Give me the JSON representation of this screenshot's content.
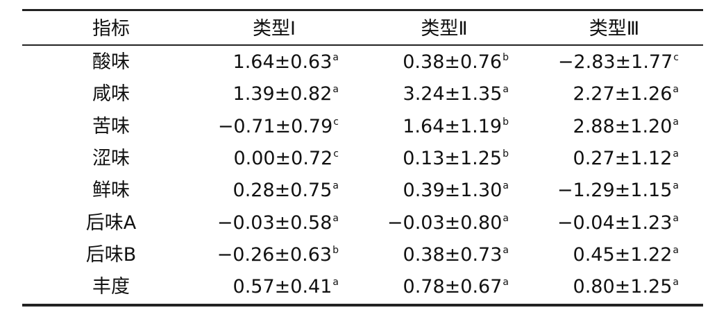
{
  "table": {
    "header": [
      "指标",
      "类型Ⅰ",
      "类型Ⅱ",
      "类型Ⅲ"
    ],
    "rows": [
      [
        "酸味",
        {
          "text": "1.64±0.63",
          "sup": "a"
        },
        {
          "text": "0.38±0.76",
          "sup": "b"
        },
        {
          "text": "−2.83±1.77",
          "sup": "c"
        }
      ],
      [
        "咸味",
        {
          "text": "1.39±0.82",
          "sup": "a"
        },
        {
          "text": "3.24±1.35",
          "sup": "a"
        },
        {
          "text": "2.27±1.26",
          "sup": "a"
        }
      ],
      [
        "苦味",
        {
          "text": "−0.71±0.79",
          "sup": "c"
        },
        {
          "text": "1.64±1.19",
          "sup": "b"
        },
        {
          "text": "2.88±1.20",
          "sup": "a"
        }
      ],
      [
        "涩味",
        {
          "text": "0.00±0.72",
          "sup": "c"
        },
        {
          "text": "0.13±1.25",
          "sup": "b"
        },
        {
          "text": "0.27±1.12",
          "sup": "a"
        }
      ],
      [
        "鲜味",
        {
          "text": "0.28±0.75",
          "sup": "a"
        },
        {
          "text": "0.39±1.30",
          "sup": "a"
        },
        {
          "text": "−1.29±1.15",
          "sup": "a"
        }
      ],
      [
        "后味A",
        {
          "text": "−0.03±0.58",
          "sup": "a"
        },
        {
          "text": "−0.03±0.80",
          "sup": "a"
        },
        {
          "text": "−0.04±1.23",
          "sup": "a"
        }
      ],
      [
        "后味B",
        {
          "text": "−0.26±0.63",
          "sup": "b"
        },
        {
          "text": "0.38±0.73",
          "sup": "a"
        },
        {
          "text": "0.45±1.22",
          "sup": "a"
        }
      ],
      [
        "丰度",
        {
          "text": "0.57±0.41",
          "sup": "a"
        },
        {
          "text": "0.78±0.67",
          "sup": "a"
        },
        {
          "text": "0.80±1.25",
          "sup": "a"
        }
      ]
    ]
  }
}
